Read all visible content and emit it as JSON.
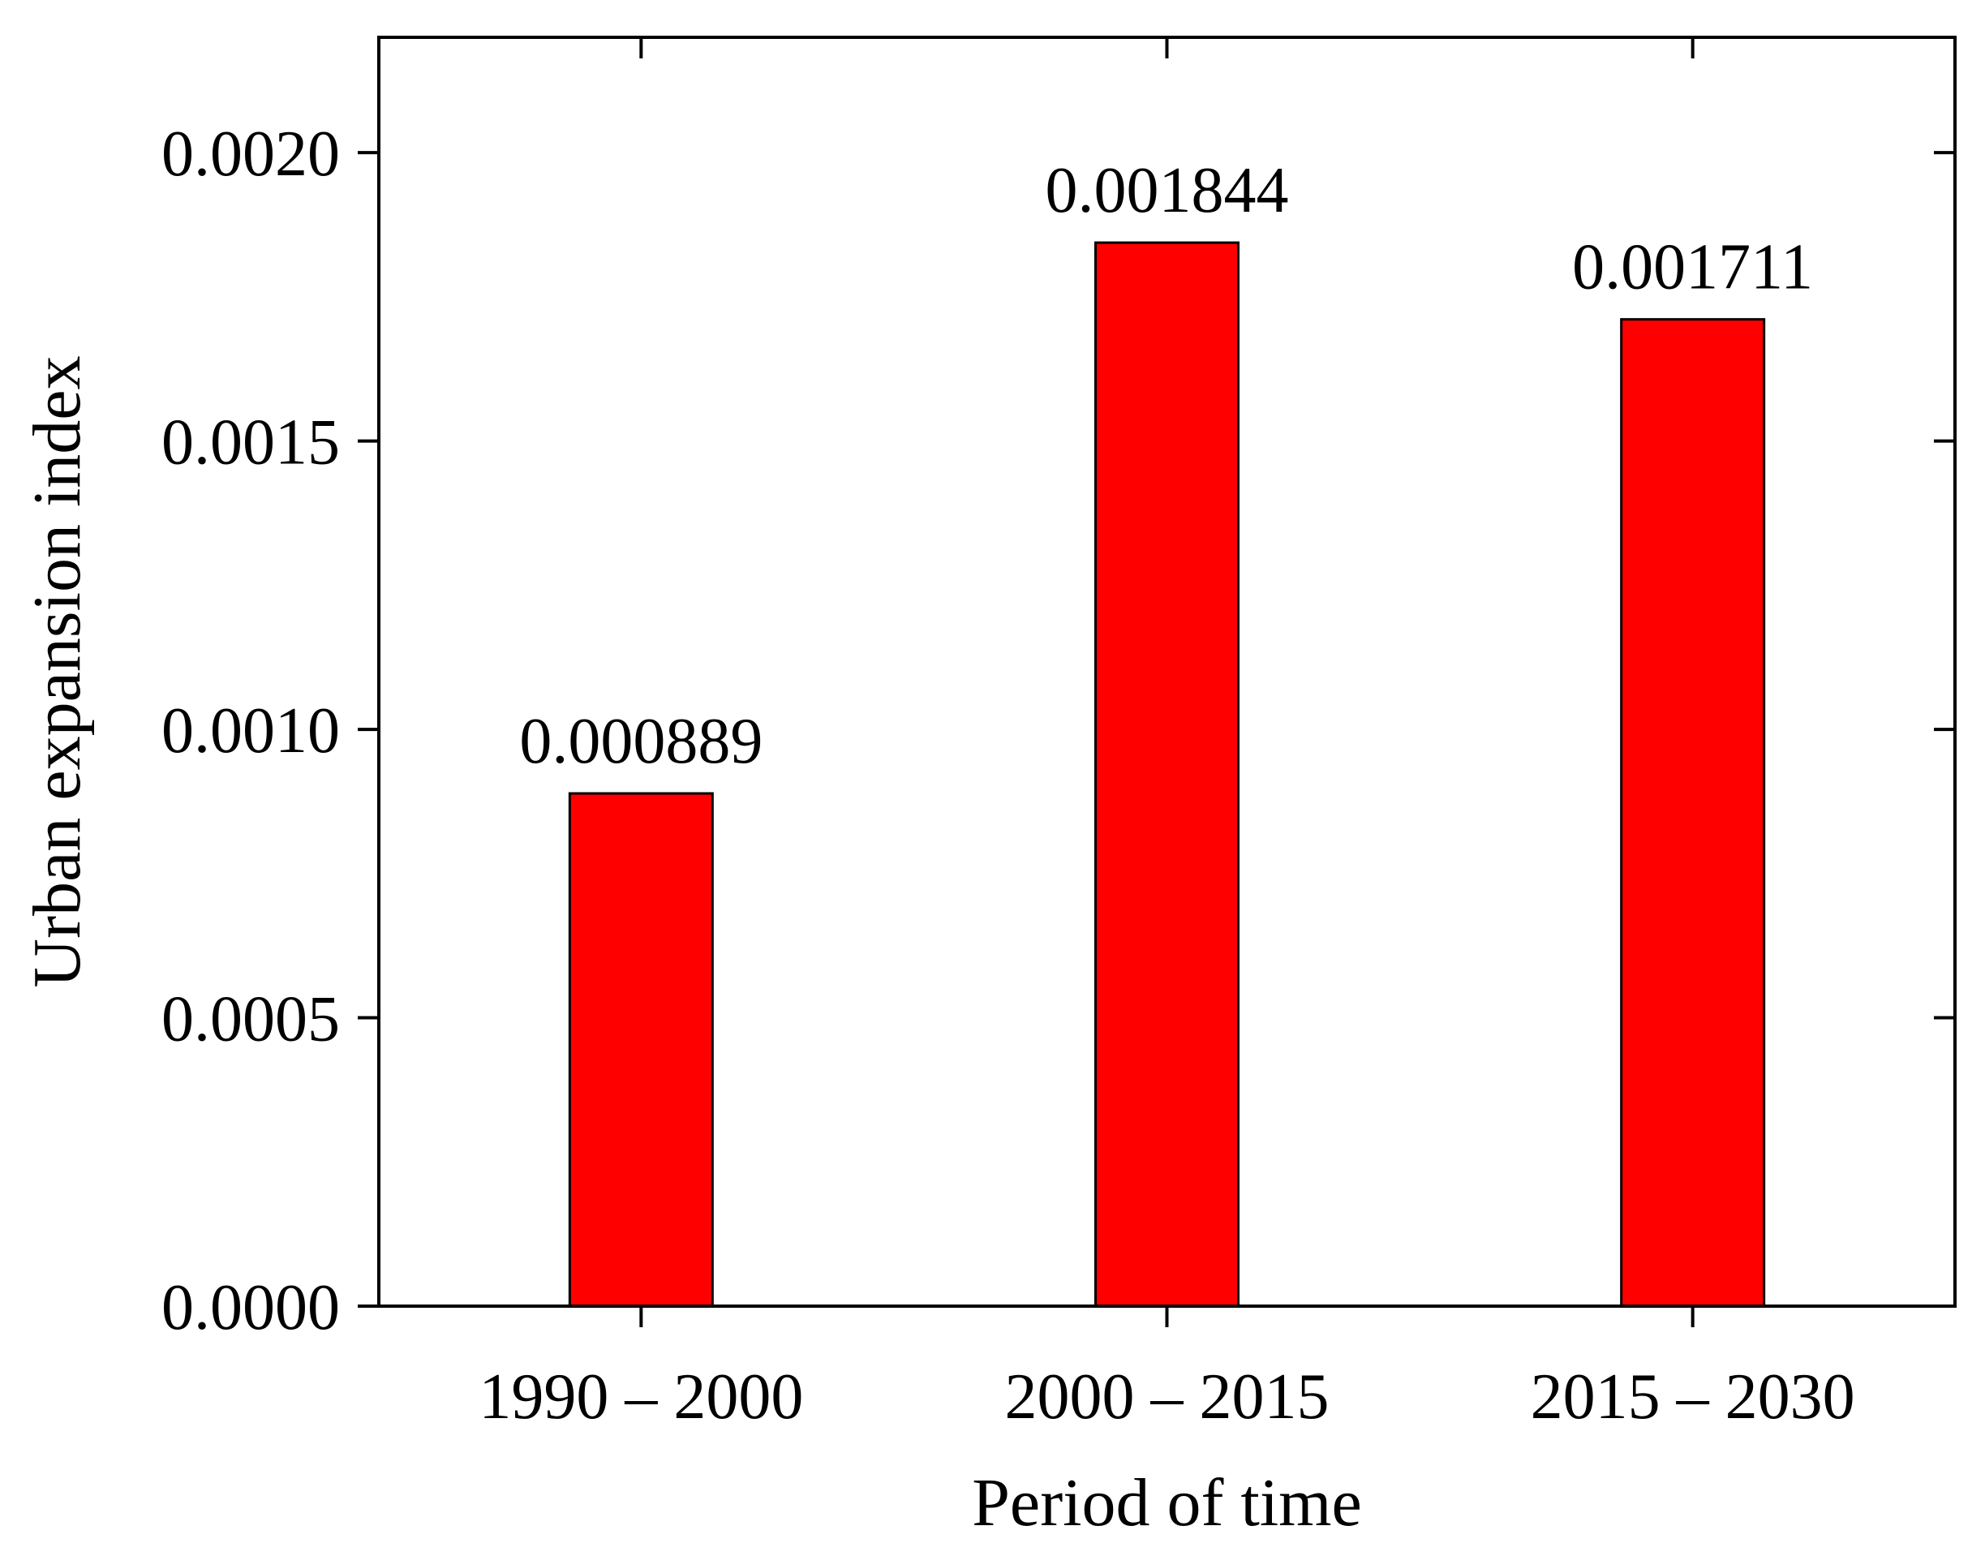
{
  "chart_data": {
    "type": "bar",
    "title": "",
    "xlabel": "Period of time",
    "ylabel": "Urban expansion index",
    "categories": [
      "1990 – 2000",
      "2000 – 2015",
      "2015 – 2030"
    ],
    "values": [
      0.000889,
      0.001844,
      0.001711
    ],
    "data_labels": [
      "0.000889",
      "0.001844",
      "0.001711"
    ],
    "ylim": [
      0,
      0.0022
    ],
    "yticks": [
      0,
      0.0005,
      0.001,
      0.0015,
      0.002
    ],
    "ytick_labels": [
      "0.0000",
      "0.0005",
      "0.0010",
      "0.0015",
      "0.0020"
    ],
    "bar_color": "#ff0000",
    "bar_edge_color": "#000000",
    "grid": false,
    "legend": "none"
  }
}
